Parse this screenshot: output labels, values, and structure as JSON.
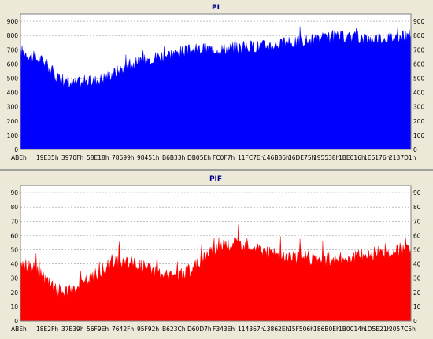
{
  "chart_data": [
    {
      "type": "area",
      "title": "PI",
      "xlabel": "",
      "ylabel": "",
      "ylim": [
        0,
        950
      ],
      "y_ticks": [
        0,
        100,
        200,
        300,
        400,
        500,
        600,
        700,
        800,
        900
      ],
      "x_tick_labels": [
        "ABEh",
        "19E35h",
        "3970Fh",
        "58E18h",
        "78699h",
        "98451h",
        "B6B33h",
        "DB05Eh",
        "FC0F7h",
        "11FC7Eh",
        "146B86h",
        "16DE75h",
        "195538h",
        "1BE016h",
        "1E6176h",
        "2137D1h"
      ],
      "grid": true,
      "fill_color": "#0000ff",
      "series": [
        {
          "x": [
            0,
            0.03,
            0.06,
            0.09,
            0.12,
            0.15,
            0.18,
            0.21,
            0.24,
            0.27,
            0.3,
            0.33,
            0.36,
            0.39,
            0.42,
            0.45,
            0.48,
            0.51,
            0.54,
            0.57,
            0.6,
            0.63,
            0.66,
            0.69,
            0.72,
            0.75,
            0.78,
            0.81,
            0.84,
            0.87,
            0.9,
            0.93,
            0.96,
            1.0
          ],
          "values": [
            700,
            650,
            620,
            520,
            460,
            470,
            480,
            500,
            540,
            580,
            610,
            640,
            660,
            675,
            690,
            700,
            705,
            705,
            710,
            720,
            725,
            730,
            740,
            745,
            760,
            770,
            780,
            790,
            790,
            780,
            780,
            785,
            790,
            800
          ]
        }
      ]
    },
    {
      "type": "area",
      "title": "PIF",
      "xlabel": "",
      "ylabel": "",
      "ylim": [
        0,
        95
      ],
      "y_ticks": [
        0,
        10,
        20,
        30,
        40,
        50,
        60,
        70,
        80,
        90
      ],
      "x_tick_labels": [
        "ABEh",
        "18E2Fh",
        "37E39h",
        "56F9Eh",
        "7642Fh",
        "95F92h",
        "B623Ch",
        "D60D7h",
        "F343Eh",
        "114367h",
        "13862Eh",
        "15F506h",
        "186B0Eh",
        "1B0014h",
        "1D5E21h",
        "2057C5h"
      ],
      "grid": true,
      "fill_color": "#ff0000",
      "series": [
        {
          "x": [
            0,
            0.03,
            0.06,
            0.09,
            0.12,
            0.15,
            0.18,
            0.21,
            0.24,
            0.27,
            0.3,
            0.33,
            0.36,
            0.39,
            0.42,
            0.45,
            0.48,
            0.51,
            0.54,
            0.57,
            0.6,
            0.63,
            0.66,
            0.69,
            0.72,
            0.75,
            0.78,
            0.81,
            0.84,
            0.87,
            0.9,
            0.93,
            0.96,
            1.0
          ],
          "values": [
            40,
            38,
            30,
            22,
            20,
            24,
            30,
            36,
            41,
            42,
            40,
            37,
            33,
            31,
            33,
            39,
            48,
            52,
            54,
            54,
            52,
            49,
            46,
            45,
            44,
            44,
            43,
            43,
            45,
            46,
            47,
            48,
            49,
            52
          ]
        }
      ]
    }
  ]
}
